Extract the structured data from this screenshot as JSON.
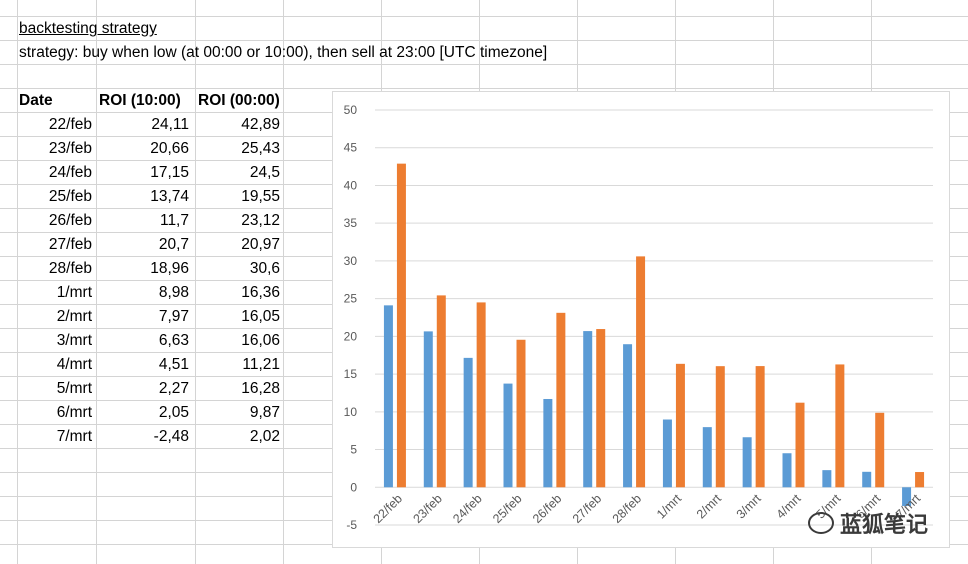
{
  "sheet": {
    "title": "backtesting strategy",
    "strategy": "strategy: buy when low (at 00:00 or 10:00), then sell at 23:00  [UTC timezone]",
    "headers": [
      "Date",
      "ROI (10:00)",
      "ROI (00:00)"
    ],
    "rows": [
      {
        "date": "22/feb",
        "roi10": "24,11",
        "roi00": "42,89"
      },
      {
        "date": "23/feb",
        "roi10": "20,66",
        "roi00": "25,43"
      },
      {
        "date": "24/feb",
        "roi10": "17,15",
        "roi00": "24,5"
      },
      {
        "date": "25/feb",
        "roi10": "13,74",
        "roi00": "19,55"
      },
      {
        "date": "26/feb",
        "roi10": "11,7",
        "roi00": "23,12"
      },
      {
        "date": "27/feb",
        "roi10": "20,7",
        "roi00": "20,97"
      },
      {
        "date": "28/feb",
        "roi10": "18,96",
        "roi00": "30,6"
      },
      {
        "date": "1/mrt",
        "roi10": "8,98",
        "roi00": "16,36"
      },
      {
        "date": "2/mrt",
        "roi10": "7,97",
        "roi00": "16,05"
      },
      {
        "date": "3/mrt",
        "roi10": "6,63",
        "roi00": "16,06"
      },
      {
        "date": "4/mrt",
        "roi10": "4,51",
        "roi00": "11,21"
      },
      {
        "date": "5/mrt",
        "roi10": "2,27",
        "roi00": "16,28"
      },
      {
        "date": "6/mrt",
        "roi10": "2,05",
        "roi00": "9,87"
      },
      {
        "date": "7/mrt",
        "roi10": "-2,48",
        "roi00": "2,02"
      }
    ]
  },
  "chart_data": {
    "type": "bar",
    "title": "",
    "xlabel": "",
    "ylabel": "",
    "categories": [
      "22/feb",
      "23/feb",
      "24/feb",
      "25/feb",
      "26/feb",
      "27/feb",
      "28/feb",
      "1/mrt",
      "2/mrt",
      "3/mrt",
      "4/mrt",
      "5/mrt",
      "6/mrt",
      "7/mrt"
    ],
    "series": [
      {
        "values": [
          24.11,
          20.66,
          17.15,
          13.74,
          11.7,
          20.7,
          18.96,
          8.98,
          7.97,
          6.63,
          4.51,
          2.27,
          2.05,
          -2.48
        ],
        "color": "#5b9bd5"
      },
      {
        "values": [
          42.89,
          25.43,
          24.5,
          19.55,
          23.12,
          20.97,
          30.6,
          16.36,
          16.05,
          16.06,
          11.21,
          16.28,
          9.87,
          2.02
        ],
        "color": "#ed7d31"
      }
    ],
    "ylim": [
      -5,
      50
    ],
    "yticks": [
      50,
      45,
      40,
      35,
      30,
      25,
      20,
      15,
      10,
      5,
      0,
      -5
    ],
    "grid": true,
    "legend": "none"
  },
  "watermark": {
    "text": "蓝狐笔记",
    "icon": "fox-logo-icon"
  }
}
